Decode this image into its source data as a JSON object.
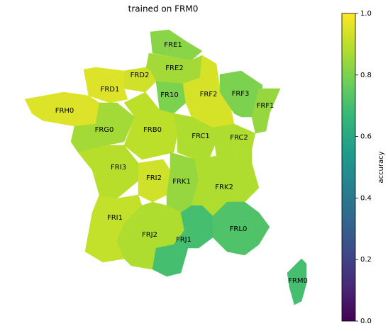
{
  "map": {
    "title": "trained on FRM0",
    "colormap": "viridis",
    "clim": [
      0,
      1
    ],
    "colorbar_label": "accuracy",
    "colorbar_ticks": [
      {
        "value": 0,
        "label": "0.0"
      },
      {
        "value": 0.2,
        "label": "0.2"
      },
      {
        "value": 0.4,
        "label": "0.4"
      },
      {
        "value": 0.6,
        "label": "0.6"
      },
      {
        "value": 0.8,
        "label": "0.8"
      },
      {
        "value": 1,
        "label": "1.0"
      }
    ],
    "regions": [
      {
        "name": "FRE1",
        "value": 0.82
      },
      {
        "name": "FRE2",
        "value": 0.86
      },
      {
        "name": "FRD2",
        "value": 0.93
      },
      {
        "name": "FRD1",
        "value": 0.95
      },
      {
        "name": "FRH0",
        "value": 0.95
      },
      {
        "name": "FR10",
        "value": 0.8
      },
      {
        "name": "FRF2",
        "value": 0.94
      },
      {
        "name": "FRF3",
        "value": 0.8
      },
      {
        "name": "FRF1",
        "value": 0.84
      },
      {
        "name": "FRG0",
        "value": 0.86
      },
      {
        "name": "FRB0",
        "value": 0.9
      },
      {
        "name": "FRC1",
        "value": 0.88
      },
      {
        "name": "FRC2",
        "value": 0.88
      },
      {
        "name": "FRI3",
        "value": 0.89
      },
      {
        "name": "FRI2",
        "value": 0.93
      },
      {
        "name": "FRK1",
        "value": 0.84
      },
      {
        "name": "FRK2",
        "value": 0.88
      },
      {
        "name": "FRI1",
        "value": 0.91
      },
      {
        "name": "FRJ2",
        "value": 0.88
      },
      {
        "name": "FRJ1",
        "value": 0.7
      },
      {
        "name": "FRL0",
        "value": 0.72
      },
      {
        "name": "FRM0",
        "value": 0.7
      }
    ]
  }
}
